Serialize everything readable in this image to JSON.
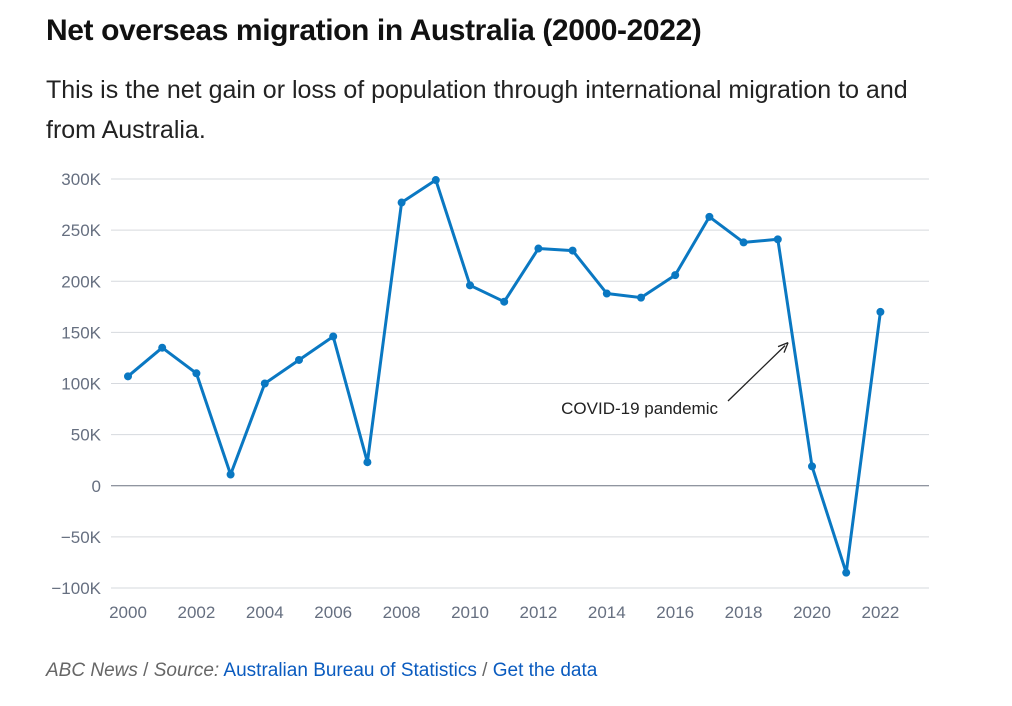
{
  "header": {
    "title": "Net overseas migration in Australia (2000-2022)",
    "subtitle": "This is the net gain or loss of population through international migration to and from Australia."
  },
  "footer": {
    "publisher": "ABC News",
    "separator1": " / ",
    "source_label": "Source:",
    "source_link": "Australian Bureau of Statistics",
    "separator2": " / ",
    "data_link": "Get the data"
  },
  "colors": {
    "line": "#0a78c2",
    "grid": "#d6d9de",
    "zero": "#6b7280",
    "axis_text": "#666f80"
  },
  "chart_data": {
    "type": "line",
    "title": "Net overseas migration in Australia (2000-2022)",
    "xlabel": "",
    "ylabel": "",
    "xlim": [
      2000,
      2023.5
    ],
    "ylim": [
      -100000,
      300000
    ],
    "grid": true,
    "x_ticks": [
      2000,
      2002,
      2004,
      2006,
      2008,
      2010,
      2012,
      2014,
      2016,
      2018,
      2020,
      2022
    ],
    "x_tick_labels": [
      "2000",
      "2002",
      "2004",
      "2006",
      "2008",
      "2010",
      "2012",
      "2014",
      "2016",
      "2018",
      "2020",
      "2022"
    ],
    "y_ticks": [
      -100000,
      -50000,
      0,
      50000,
      100000,
      150000,
      200000,
      250000,
      300000
    ],
    "y_tick_labels": [
      "−100K",
      "−50K",
      "0",
      "50K",
      "100K",
      "150K",
      "200K",
      "250K",
      "300K"
    ],
    "series": [
      {
        "x": [
          2000,
          2001,
          2002,
          2003,
          2004,
          2005,
          2006,
          2007,
          2008,
          2009,
          2010,
          2011,
          2012,
          2013,
          2014,
          2015,
          2016,
          2017,
          2018,
          2019,
          2020,
          2021,
          2022
        ],
        "values": [
          107000,
          135000,
          110000,
          11000,
          100000,
          123000,
          146000,
          23000,
          277000,
          299000,
          196000,
          180000,
          232000,
          230000,
          188000,
          184000,
          206000,
          263000,
          238000,
          241000,
          19000,
          -85000,
          170000
        ]
      }
    ],
    "annotations": [
      {
        "text": "COVID-19 pandemic",
        "x": 2019.3,
        "y": 140000
      }
    ]
  }
}
